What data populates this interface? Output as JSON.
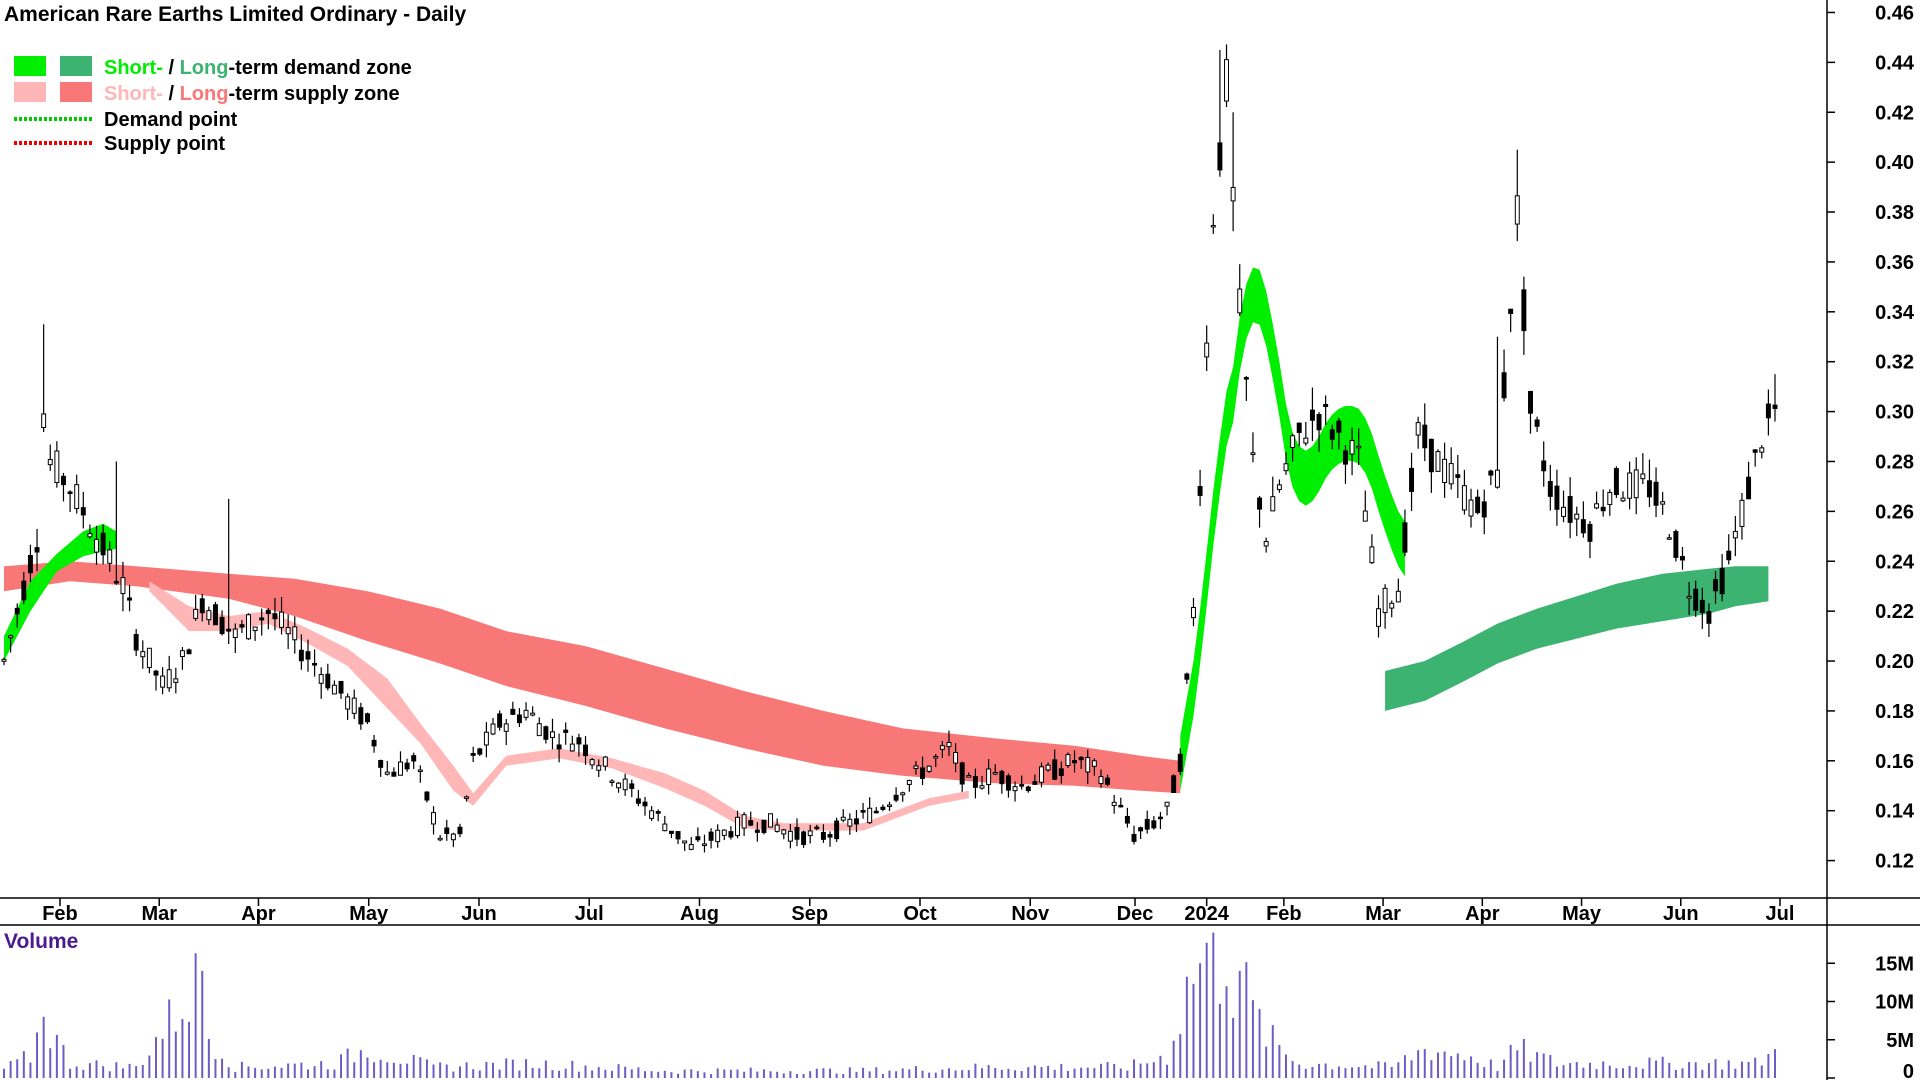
{
  "chart_data": {
    "type": "candlestick",
    "title": "American Rare Earths Limited Ordinary - Daily",
    "price_axis": {
      "ylim": [
        0.105,
        0.465
      ],
      "ticks": [
        "0.46",
        "0.44",
        "0.42",
        "0.40",
        "0.38",
        "0.36",
        "0.34",
        "0.32",
        "0.30",
        "0.28",
        "0.26",
        "0.24",
        "0.22",
        "0.20",
        "0.18",
        "0.16",
        "0.14",
        "0.12"
      ],
      "tick_values": [
        0.46,
        0.44,
        0.42,
        0.4,
        0.38,
        0.36,
        0.34,
        0.32,
        0.3,
        0.28,
        0.26,
        0.24,
        0.22,
        0.2,
        0.18,
        0.16,
        0.14,
        0.12
      ]
    },
    "months": [
      "Feb",
      "Mar",
      "Apr",
      "May",
      "Jun",
      "Jul",
      "Aug",
      "Sep",
      "Oct",
      "Nov",
      "Dec",
      "2024",
      "Feb",
      "Mar",
      "Apr",
      "May",
      "Jun",
      "Jul"
    ],
    "legend": {
      "demand_zone": {
        "short": "Short-",
        "sep": " / ",
        "long": "Long",
        "rest": "-term demand zone"
      },
      "supply_zone": {
        "short": "Short-",
        "sep": " / ",
        "long": "Long",
        "rest": "-term supply zone"
      },
      "demand_point": "Demand point",
      "supply_point": "Supply point"
    },
    "colors": {
      "short_demand": "#00ee00",
      "long_demand": "#3cb371",
      "short_supply": "#ffb6b6",
      "long_supply": "#f87878",
      "crossover": "#ff6a1a",
      "demand_point": "#00cc00",
      "supply_point": "#ee0000",
      "volume": "#6c5cc4",
      "volume_label": "#4b1a8c"
    },
    "price_anchors": [
      [
        0,
        0.2
      ],
      [
        2,
        0.22
      ],
      [
        5,
        0.25
      ],
      [
        6,
        0.3
      ],
      [
        7,
        0.28
      ],
      [
        10,
        0.27
      ],
      [
        14,
        0.25
      ],
      [
        18,
        0.23
      ],
      [
        20,
        0.21
      ],
      [
        24,
        0.19
      ],
      [
        27,
        0.2
      ],
      [
        30,
        0.225
      ],
      [
        35,
        0.21
      ],
      [
        40,
        0.22
      ],
      [
        45,
        0.205
      ],
      [
        50,
        0.19
      ],
      [
        55,
        0.175
      ],
      [
        58,
        0.155
      ],
      [
        62,
        0.16
      ],
      [
        66,
        0.13
      ],
      [
        69,
        0.13
      ],
      [
        71,
        0.16
      ],
      [
        75,
        0.175
      ],
      [
        79,
        0.18
      ],
      [
        83,
        0.17
      ],
      [
        87,
        0.168
      ],
      [
        92,
        0.155
      ],
      [
        96,
        0.145
      ],
      [
        100,
        0.135
      ],
      [
        104,
        0.125
      ],
      [
        108,
        0.13
      ],
      [
        112,
        0.135
      ],
      [
        116,
        0.135
      ],
      [
        120,
        0.13
      ],
      [
        124,
        0.13
      ],
      [
        128,
        0.135
      ],
      [
        132,
        0.14
      ],
      [
        136,
        0.15
      ],
      [
        140,
        0.158
      ],
      [
        143,
        0.165
      ],
      [
        146,
        0.15
      ],
      [
        150,
        0.155
      ],
      [
        154,
        0.15
      ],
      [
        158,
        0.155
      ],
      [
        162,
        0.16
      ],
      [
        166,
        0.155
      ],
      [
        169,
        0.14
      ],
      [
        171,
        0.13
      ],
      [
        174,
        0.135
      ],
      [
        176,
        0.14
      ],
      [
        178,
        0.16
      ],
      [
        180,
        0.22
      ],
      [
        183,
        0.38
      ],
      [
        185,
        0.43
      ],
      [
        187,
        0.34
      ],
      [
        189,
        0.28
      ],
      [
        191,
        0.25
      ],
      [
        193,
        0.27
      ],
      [
        196,
        0.29
      ],
      [
        199,
        0.3
      ],
      [
        202,
        0.29
      ],
      [
        205,
        0.28
      ],
      [
        208,
        0.22
      ],
      [
        211,
        0.23
      ],
      [
        214,
        0.29
      ],
      [
        217,
        0.28
      ],
      [
        220,
        0.27
      ],
      [
        223,
        0.26
      ],
      [
        226,
        0.275
      ],
      [
        229,
        0.38
      ],
      [
        231,
        0.3
      ],
      [
        234,
        0.27
      ],
      [
        237,
        0.26
      ],
      [
        240,
        0.255
      ],
      [
        243,
        0.27
      ],
      [
        246,
        0.27
      ],
      [
        249,
        0.27
      ],
      [
        252,
        0.255
      ],
      [
        255,
        0.23
      ],
      [
        258,
        0.22
      ],
      [
        261,
        0.24
      ],
      [
        264,
        0.27
      ],
      [
        266,
        0.29
      ],
      [
        268,
        0.3
      ]
    ],
    "spikes": [
      [
        6,
        0.335
      ],
      [
        17,
        0.28
      ],
      [
        34,
        0.265
      ],
      [
        184,
        0.445
      ],
      [
        186,
        0.42
      ],
      [
        229,
        0.405
      ],
      [
        226,
        0.33
      ],
      [
        268,
        0.315
      ]
    ],
    "zones": {
      "long_demand": {
        "upper": [
          [
            209,
            0.196
          ],
          [
            215,
            0.2
          ],
          [
            221,
            0.208
          ],
          [
            226,
            0.215
          ],
          [
            232,
            0.221
          ],
          [
            238,
            0.226
          ],
          [
            244,
            0.231
          ],
          [
            251,
            0.235
          ],
          [
            258,
            0.237
          ],
          [
            262,
            0.238
          ],
          [
            267,
            0.238
          ]
        ],
        "lower": [
          [
            209,
            0.18
          ],
          [
            215,
            0.184
          ],
          [
            221,
            0.192
          ],
          [
            226,
            0.199
          ],
          [
            232,
            0.205
          ],
          [
            238,
            0.209
          ],
          [
            244,
            0.213
          ],
          [
            251,
            0.216
          ],
          [
            258,
            0.219
          ],
          [
            262,
            0.222
          ],
          [
            267,
            0.224
          ]
        ]
      },
      "long_supply": {
        "upper": [
          [
            0,
            0.238
          ],
          [
            10,
            0.24
          ],
          [
            20,
            0.238
          ],
          [
            34,
            0.235
          ],
          [
            44,
            0.233
          ],
          [
            55,
            0.228
          ],
          [
            66,
            0.221
          ],
          [
            76,
            0.212
          ],
          [
            88,
            0.206
          ],
          [
            100,
            0.197
          ],
          [
            112,
            0.188
          ],
          [
            124,
            0.18
          ],
          [
            136,
            0.173
          ],
          [
            150,
            0.169
          ],
          [
            162,
            0.166
          ],
          [
            172,
            0.162
          ],
          [
            178,
            0.16
          ]
        ],
        "lower": [
          [
            0,
            0.228
          ],
          [
            10,
            0.232
          ],
          [
            20,
            0.23
          ],
          [
            34,
            0.225
          ],
          [
            44,
            0.218
          ],
          [
            55,
            0.208
          ],
          [
            66,
            0.199
          ],
          [
            76,
            0.19
          ],
          [
            88,
            0.182
          ],
          [
            100,
            0.173
          ],
          [
            112,
            0.165
          ],
          [
            124,
            0.158
          ],
          [
            136,
            0.154
          ],
          [
            150,
            0.151
          ],
          [
            162,
            0.15
          ],
          [
            172,
            0.148
          ],
          [
            178,
            0.147
          ]
        ]
      },
      "short_supply": {
        "upper": [
          [
            22,
            0.232
          ],
          [
            28,
            0.222
          ],
          [
            34,
            0.218
          ],
          [
            40,
            0.22
          ],
          [
            46,
            0.213
          ],
          [
            52,
            0.205
          ],
          [
            58,
            0.193
          ],
          [
            63,
            0.175
          ],
          [
            68,
            0.158
          ],
          [
            71,
            0.147
          ],
          [
            76,
            0.162
          ],
          [
            84,
            0.165
          ],
          [
            92,
            0.161
          ],
          [
            100,
            0.155
          ],
          [
            106,
            0.148
          ],
          [
            112,
            0.138
          ],
          [
            118,
            0.135
          ],
          [
            124,
            0.135
          ],
          [
            130,
            0.135
          ],
          [
            140,
            0.145
          ],
          [
            146,
            0.148
          ]
        ],
        "lower": [
          [
            22,
            0.228
          ],
          [
            28,
            0.212
          ],
          [
            34,
            0.212
          ],
          [
            40,
            0.215
          ],
          [
            46,
            0.207
          ],
          [
            52,
            0.198
          ],
          [
            58,
            0.181
          ],
          [
            63,
            0.167
          ],
          [
            68,
            0.148
          ],
          [
            71,
            0.142
          ],
          [
            76,
            0.158
          ],
          [
            84,
            0.161
          ],
          [
            92,
            0.157
          ],
          [
            100,
            0.149
          ],
          [
            106,
            0.142
          ],
          [
            112,
            0.133
          ],
          [
            118,
            0.132
          ],
          [
            124,
            0.132
          ],
          [
            130,
            0.132
          ],
          [
            140,
            0.142
          ],
          [
            146,
            0.145
          ]
        ]
      },
      "short_demand": {
        "upper": [
          [
            0,
            0.21
          ],
          [
            4,
            0.232
          ],
          [
            8,
            0.243
          ],
          [
            12,
            0.252
          ],
          [
            15,
            0.255
          ],
          [
            17,
            0.252
          ]
        ],
        "lower": [
          [
            0,
            0.2
          ],
          [
            4,
            0.22
          ],
          [
            8,
            0.236
          ],
          [
            12,
            0.242
          ],
          [
            15,
            0.244
          ],
          [
            17,
            0.245
          ]
        ]
      }
    },
    "volume": {
      "ticks": [
        "15M",
        "10M",
        "5M",
        "0"
      ],
      "tick_values": [
        15,
        10,
        5,
        0
      ],
      "ylim": [
        0,
        20
      ],
      "label": "Volume",
      "anchors": [
        [
          0,
          1.2
        ],
        [
          4,
          3
        ],
        [
          6,
          8
        ],
        [
          10,
          2
        ],
        [
          20,
          1.5
        ],
        [
          30,
          14
        ],
        [
          31,
          6
        ],
        [
          35,
          1.5
        ],
        [
          50,
          2
        ],
        [
          55,
          4
        ],
        [
          65,
          1.5
        ],
        [
          80,
          2
        ],
        [
          100,
          1
        ],
        [
          130,
          1
        ],
        [
          150,
          1.5
        ],
        [
          170,
          1.5
        ],
        [
          176,
          3
        ],
        [
          180,
          15
        ],
        [
          183,
          19
        ],
        [
          185,
          12
        ],
        [
          187,
          14
        ],
        [
          189,
          9
        ],
        [
          191,
          6
        ],
        [
          193,
          4
        ],
        [
          196,
          2
        ],
        [
          210,
          1.5
        ],
        [
          215,
          4
        ],
        [
          222,
          3
        ],
        [
          226,
          1.5
        ],
        [
          229,
          4
        ],
        [
          235,
          2
        ],
        [
          245,
          2
        ],
        [
          255,
          2
        ],
        [
          265,
          2
        ],
        [
          268,
          3.5
        ]
      ],
      "spikes": [
        [
          183,
          19
        ],
        [
          181,
          15
        ],
        [
          185,
          12
        ],
        [
          187,
          14
        ],
        [
          30,
          14
        ],
        [
          6,
          8
        ]
      ]
    }
  }
}
